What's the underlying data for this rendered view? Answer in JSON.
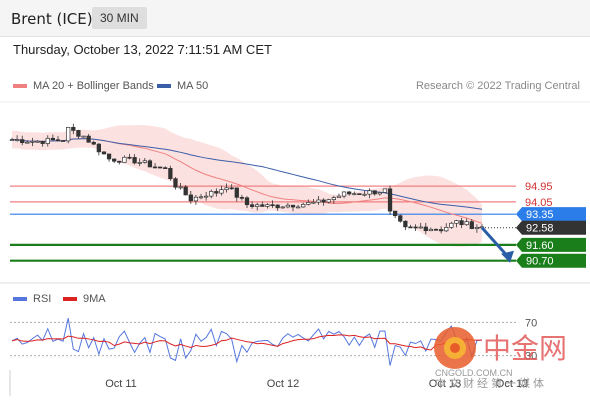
{
  "header": {
    "title": "Brent (ICE)",
    "interval": "30 MIN"
  },
  "timestamp": "Thursday, October 13, 2022 7:11:51 AM CET",
  "legend": {
    "bollinger": "MA 20 + Bollinger Bands",
    "ma50": "MA 50",
    "rsi": "RSI",
    "rsi_ma": "9MA"
  },
  "credit": "Research © 2022 Trading Central",
  "watermark": {
    "name": "中金网",
    "domain": "CNGOLD.COM.CN",
    "tagline": "中文财经第一媒体"
  },
  "colors": {
    "ma20": "#f08080",
    "ma50": "#3b5ea8",
    "pivot": "#2b7de9",
    "current": "#333333",
    "support": "#1a7f1a",
    "resistance": "#f08080",
    "rsi": "#5577dd",
    "rsi_ma": "#dd2222",
    "arrow": "#2a5da8"
  },
  "chart_data": {
    "type": "candlestick",
    "y_range": [
      89.6,
      99.4
    ],
    "x_ticks": [
      "Oct 11",
      "Oct 12",
      "Oct 13",
      "Oct 13"
    ],
    "levels": [
      {
        "value": "94.95",
        "kind": "resistance"
      },
      {
        "value": "94.05",
        "kind": "resistance"
      },
      {
        "value": "93.35",
        "kind": "pivot"
      },
      {
        "value": "92.58",
        "kind": "current"
      },
      {
        "value": "91.60",
        "kind": "support"
      },
      {
        "value": "90.70",
        "kind": "support"
      }
    ],
    "anchors_close": [
      [
        0,
        97.6
      ],
      [
        5,
        97.5
      ],
      [
        10,
        97.6
      ],
      [
        11,
        98.2
      ],
      [
        14,
        97.8
      ],
      [
        19,
        96.5
      ],
      [
        24,
        96.4
      ],
      [
        30,
        95.9
      ],
      [
        32,
        95.0
      ],
      [
        35,
        94.2
      ],
      [
        38,
        94.5
      ],
      [
        40,
        94.6
      ],
      [
        42,
        95.0
      ],
      [
        44,
        94.4
      ],
      [
        46,
        93.9
      ],
      [
        50,
        93.8
      ],
      [
        55,
        93.9
      ],
      [
        60,
        94.0
      ],
      [
        63,
        94.3
      ],
      [
        65,
        94.5
      ],
      [
        70,
        94.6
      ],
      [
        73,
        94.7
      ],
      [
        74,
        93.4
      ],
      [
        77,
        92.5
      ],
      [
        80,
        92.6
      ],
      [
        84,
        92.5
      ],
      [
        87,
        92.9
      ],
      [
        90,
        92.7
      ],
      [
        92,
        92.6
      ]
    ],
    "rsi": {
      "levels": [
        "70",
        "30"
      ]
    }
  }
}
